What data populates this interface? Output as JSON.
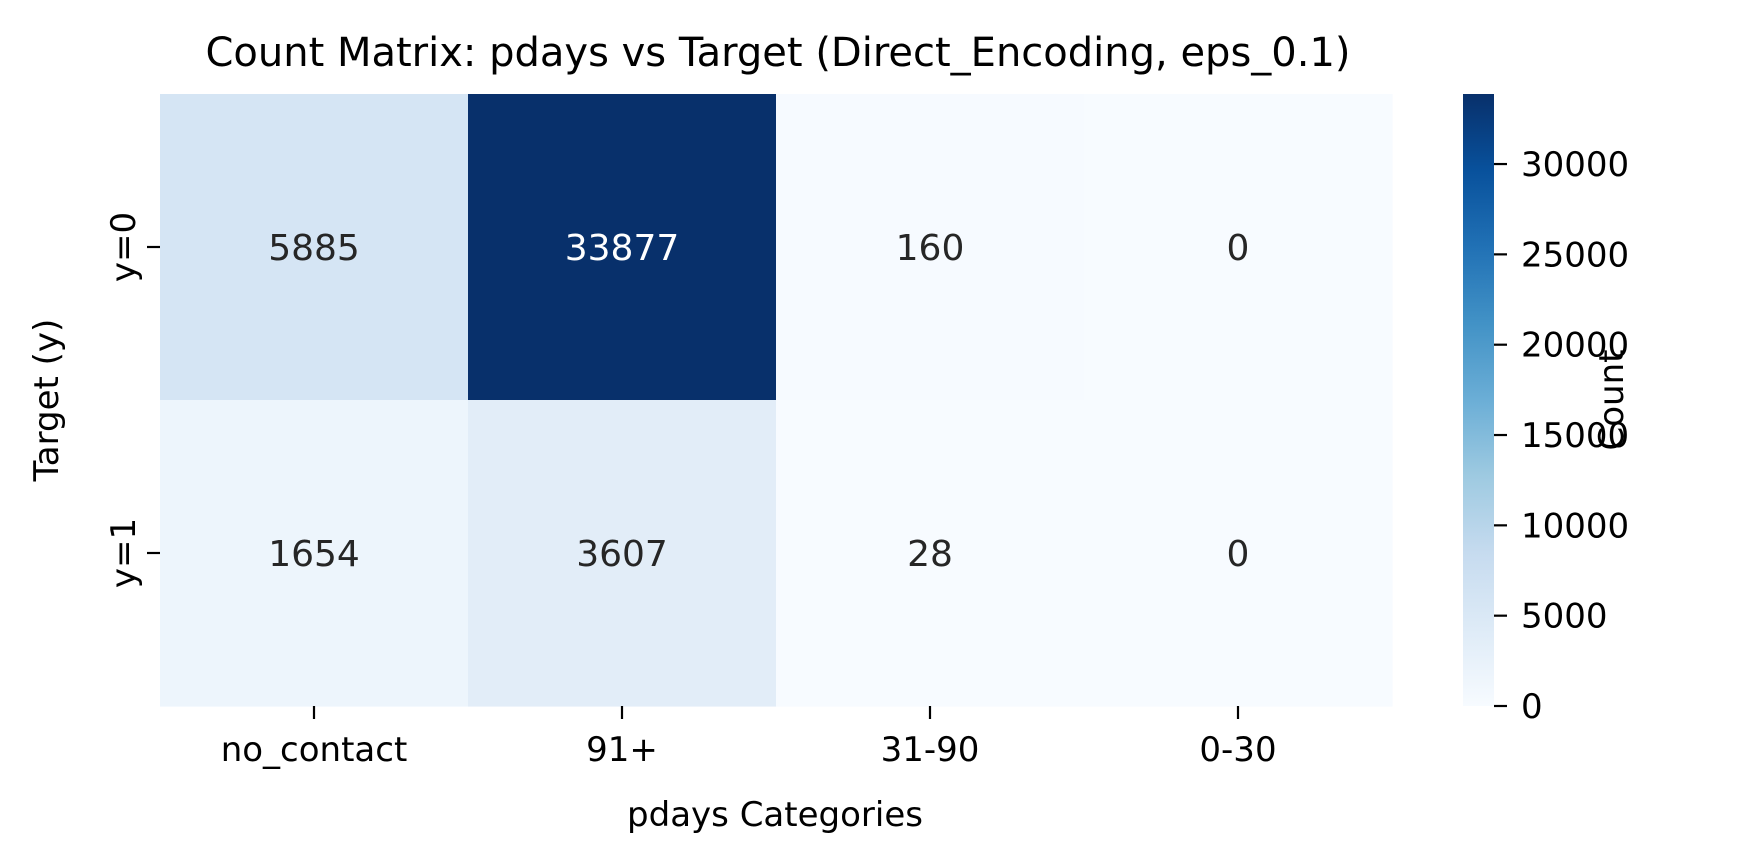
{
  "chart_data": {
    "type": "heatmap",
    "title": "Count Matrix: pdays vs Target (Direct_Encoding, eps_0.1)",
    "xlabel": "pdays Categories",
    "ylabel": "Target (y)",
    "x_categories": [
      "no_contact",
      "91+",
      "31-90",
      "0-30"
    ],
    "y_categories": [
      "y=0",
      "y=1"
    ],
    "values": [
      [
        5885,
        33877,
        160,
        0
      ],
      [
        1654,
        3607,
        28,
        0
      ]
    ],
    "colormap": "Blues",
    "colormap_stops": [
      "#f7fbff",
      "#deebf7",
      "#c6dbef",
      "#9ecae1",
      "#6baed6",
      "#4292c6",
      "#2171b5",
      "#08519c",
      "#08306b"
    ],
    "vmin": 0,
    "vmax": 33877,
    "colorbar": {
      "label": "Count",
      "ticks": [
        0,
        5000,
        10000,
        15000,
        20000,
        25000,
        30000
      ],
      "tick_labels": [
        "0",
        "5000",
        "10000",
        "15000",
        "20000",
        "25000",
        "30000"
      ]
    },
    "annotation_dark_text": "#262626",
    "annotation_light_text": "#ffffff"
  }
}
